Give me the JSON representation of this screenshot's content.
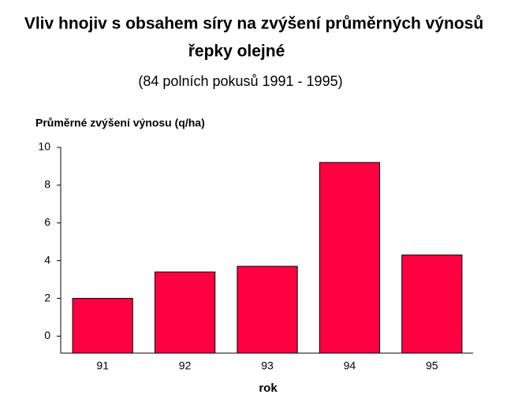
{
  "chart_data": {
    "type": "bar",
    "title": "Vliv hnojiv s obsahem síry na zvýšení průměrných výnosů",
    "title_line2": "řepky olejné",
    "subtitle": "(84 polních pokusů 1991 - 1995)",
    "y_label": "Průměrné zvýšení výnosu (q/ha)",
    "x_label": "rok",
    "categories": [
      "91",
      "92",
      "93",
      "94",
      "95"
    ],
    "values": [
      2.0,
      3.4,
      3.7,
      9.2,
      4.3
    ],
    "color": "#ff0040",
    "ylim": [
      -0.9,
      10
    ],
    "yticks": [
      0,
      2,
      4,
      6,
      8,
      10
    ]
  }
}
